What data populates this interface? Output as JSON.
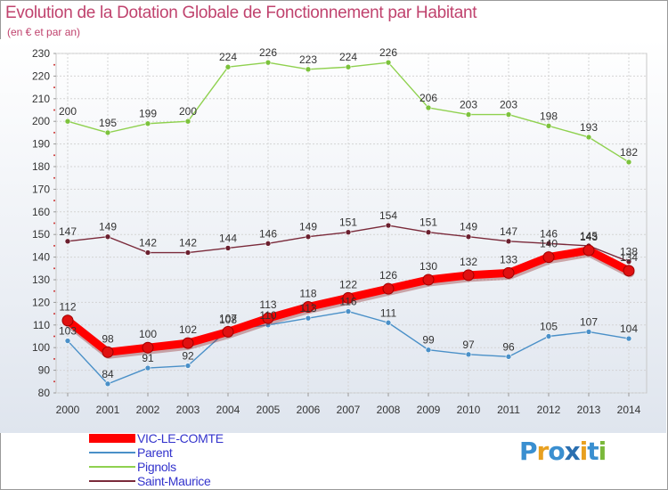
{
  "title": "Evolution de la Dotation Globale de Fonctionnement par Habitant",
  "subtitle": "(en € et par an)",
  "logo": {
    "text": "Proxiti",
    "letters": [
      "P",
      "r",
      "o",
      "x",
      "i",
      "t",
      "i"
    ],
    "letter_colors": [
      "#3a8fd0",
      "#e8a020",
      "#3a8fd0",
      "#2a6fb0",
      "#e8a020",
      "#3a8fd0",
      "#7ab83a"
    ]
  },
  "chart_data": {
    "type": "line",
    "title": "Evolution de la Dotation Globale de Fonctionnement par Habitant",
    "subtitle": "(en € et par an)",
    "xlabel": "",
    "ylabel": "",
    "ylim": [
      80,
      230
    ],
    "yticks": [
      80,
      90,
      100,
      110,
      120,
      130,
      140,
      150,
      160,
      170,
      180,
      190,
      200,
      210,
      220,
      230
    ],
    "grid": true,
    "categories": [
      "2000",
      "2001",
      "2002",
      "2003",
      "2004",
      "2005",
      "2006",
      "2007",
      "2008",
      "2009",
      "2010",
      "2011",
      "2012",
      "2013",
      "2014"
    ],
    "series": [
      {
        "name": "VIC-LE-COMTE",
        "color": "#ff0000",
        "marker_color": "#e01010",
        "label_color": "#333333",
        "style": "thick",
        "values": [
          112,
          98,
          100,
          102,
          107,
          113,
          118,
          122,
          126,
          130,
          132,
          133,
          140,
          143,
          134
        ]
      },
      {
        "name": "Parent",
        "color": "#4a90c8",
        "marker_color": "#4a90c8",
        "label_color": "#333333",
        "style": "thin",
        "values": [
          103,
          84,
          91,
          92,
          108,
          110,
          113,
          116,
          111,
          99,
          97,
          96,
          105,
          107,
          104
        ]
      },
      {
        "name": "Pignols",
        "color": "#8fd14f",
        "marker_color": "#7cc23c",
        "label_color": "#333333",
        "style": "thin",
        "values": [
          200,
          195,
          199,
          200,
          224,
          226,
          223,
          224,
          226,
          206,
          203,
          203,
          198,
          193,
          182
        ]
      },
      {
        "name": "Saint-Maurice",
        "color": "#7a2a3a",
        "marker_color": "#6a1f2e",
        "label_color": "#333333",
        "style": "thin",
        "values": [
          147,
          149,
          142,
          142,
          144,
          146,
          149,
          151,
          154,
          151,
          149,
          147,
          146,
          145,
          138
        ]
      }
    ],
    "legend": {
      "position": "bottom-left",
      "label_color": "#3333cc"
    }
  }
}
